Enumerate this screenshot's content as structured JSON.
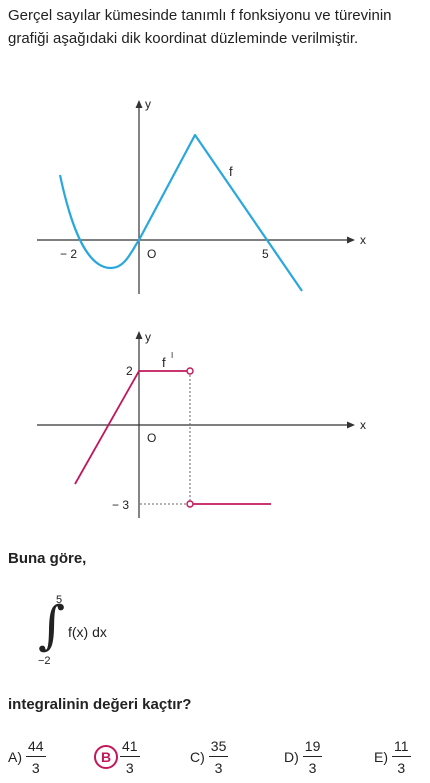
{
  "problem": {
    "intro": "Gerçel sayılar kümesinde tanımlı  f  fonksiyonu ve türevinin grafiği aşağıdaki dik koordinat düzleminde verilmiştir.",
    "prompt": "Buna göre,",
    "question": "integralinin değeri kaçtır?"
  },
  "graph_f": {
    "x_axis_label": "x",
    "y_axis_label": "y",
    "origin_label": "O",
    "curve_label": "f",
    "tick_neg2": "− 2",
    "tick_5": "5",
    "curve_color": "#29a8dc"
  },
  "graph_fprime": {
    "x_axis_label": "x",
    "y_axis_label": "y",
    "origin_label": "O",
    "curve_label": "f",
    "curve_label_prime": "I",
    "tick_2": "2",
    "tick_neg3": "− 3",
    "curve_color": "#c2185b"
  },
  "integral": {
    "sign": "∫",
    "upper": "5",
    "lower": "−2",
    "integrand": "f(x) dx"
  },
  "options": [
    {
      "letter": "A)",
      "num": "44",
      "den": "3",
      "selected": false
    },
    {
      "letter": "B",
      "num": "41",
      "den": "3",
      "selected": true
    },
    {
      "letter": "C)",
      "num": "35",
      "den": "3",
      "selected": false
    },
    {
      "letter": "D)",
      "num": "19",
      "den": "3",
      "selected": false
    },
    {
      "letter": "E)",
      "num": "11",
      "den": "3",
      "selected": false
    }
  ],
  "colors": {
    "text": "#222222",
    "axis": "#333333",
    "f_curve": "#29a8dc",
    "fprime_curve": "#c2185b",
    "answer_highlight": "#c2185b"
  }
}
